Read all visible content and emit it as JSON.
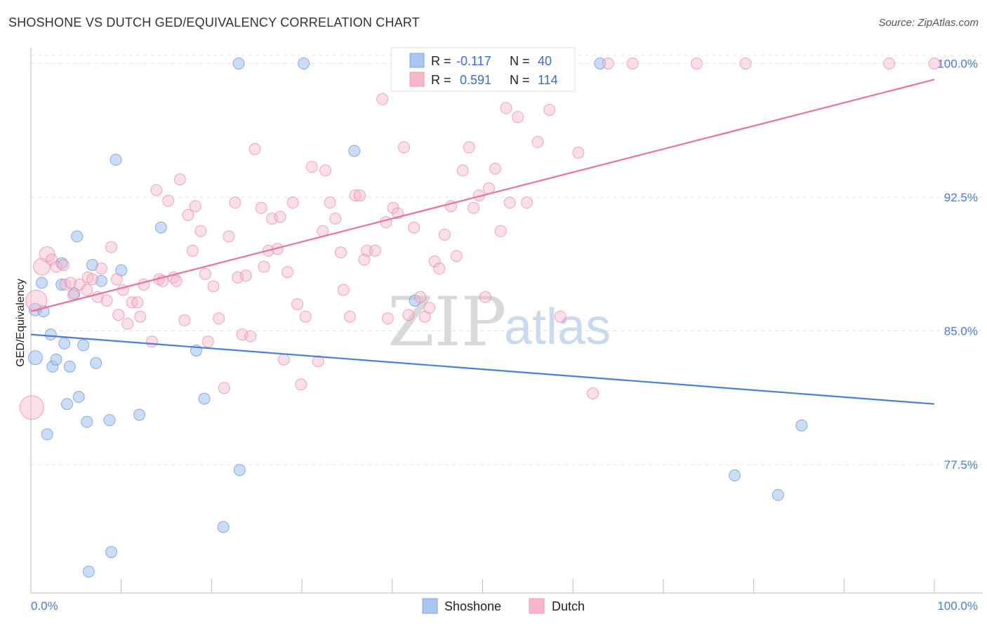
{
  "header": {
    "title": "SHOSHONE VS DUTCH GED/EQUIVALENCY CORRELATION CHART",
    "source": "Source: ZipAtlas.com"
  },
  "legend_box": {
    "rows": [
      {
        "r_label": "R =",
        "r_value": "-0.117",
        "n_label": "N =",
        "n_value": "40",
        "color": "#a9c6f0"
      },
      {
        "r_label": "R =",
        "r_value": "0.591",
        "n_label": "N =",
        "n_value": "114",
        "color": "#f6b8c9"
      }
    ]
  },
  "bottom_legend": {
    "items": [
      {
        "label": "Shoshone",
        "color": "#a9c6f0"
      },
      {
        "label": "Dutch",
        "color": "#f6b8c9"
      }
    ]
  },
  "watermark": {
    "zip": "ZIP",
    "atlas": "atlas"
  },
  "chart_data": {
    "type": "scatter",
    "title": "SHOSHONE VS DUTCH GED/EQUIVALENCY CORRELATION CHART",
    "xlabel": "",
    "ylabel": "GED/Equivalency",
    "xlim": [
      0,
      100
    ],
    "ylim": [
      70.3,
      101.2
    ],
    "x_tick_labels": [
      "0.0%",
      "100.0%"
    ],
    "y_ticks": [
      77.5,
      85.0,
      92.5,
      100.0
    ],
    "y_tick_labels": [
      "77.5%",
      "85.0%",
      "92.5%",
      "100.0%"
    ],
    "grid": true,
    "legend_position": "top-center",
    "series": [
      {
        "name": "Shoshone",
        "color": "#4a7fd6",
        "fill": "#a9c6f0",
        "r": -0.117,
        "n": 40,
        "trend": {
          "x": [
            0,
            100
          ],
          "y": [
            84.8,
            80.9
          ]
        },
        "points": [
          [
            0.5,
            83.5
          ],
          [
            0.5,
            86.2
          ],
          [
            1.2,
            87.7
          ],
          [
            1.4,
            86.1
          ],
          [
            1.8,
            79.2
          ],
          [
            2.2,
            84.8
          ],
          [
            2.4,
            83.0
          ],
          [
            2.8,
            83.4
          ],
          [
            3.4,
            88.8
          ],
          [
            3.4,
            87.6
          ],
          [
            3.7,
            84.3
          ],
          [
            4.0,
            80.9
          ],
          [
            4.3,
            83.0
          ],
          [
            4.8,
            87.1
          ],
          [
            5.1,
            90.3
          ],
          [
            5.3,
            81.3
          ],
          [
            5.8,
            84.2
          ],
          [
            6.2,
            79.9
          ],
          [
            6.4,
            71.5
          ],
          [
            6.8,
            88.7
          ],
          [
            7.2,
            83.2
          ],
          [
            7.8,
            87.8
          ],
          [
            8.7,
            80.0
          ],
          [
            8.9,
            72.6
          ],
          [
            9.4,
            94.6
          ],
          [
            10.0,
            88.4
          ],
          [
            12.0,
            80.3
          ],
          [
            14.4,
            90.8
          ],
          [
            18.3,
            83.9
          ],
          [
            19.2,
            81.2
          ],
          [
            21.3,
            74.0
          ],
          [
            23.0,
            100.0
          ],
          [
            23.1,
            77.2
          ],
          [
            30.2,
            100.0
          ],
          [
            35.8,
            95.1
          ],
          [
            42.5,
            86.7
          ],
          [
            63.0,
            100.0
          ],
          [
            77.9,
            76.9
          ],
          [
            82.7,
            75.8
          ],
          [
            85.3,
            79.7
          ]
        ]
      },
      {
        "name": "Dutch",
        "color": "#e8729b",
        "fill": "#f6b8c9",
        "r": 0.591,
        "n": 114,
        "trend": {
          "x": [
            0,
            100
          ],
          "y": [
            86.1,
            99.1
          ]
        },
        "points": [
          [
            0.1,
            80.7
          ],
          [
            0.6,
            86.7
          ],
          [
            1.2,
            88.6
          ],
          [
            1.8,
            89.3
          ],
          [
            2.3,
            89.0
          ],
          [
            2.8,
            88.6
          ],
          [
            3.6,
            88.7
          ],
          [
            3.8,
            87.6
          ],
          [
            4.4,
            87.7
          ],
          [
            4.7,
            87.0
          ],
          [
            5.4,
            87.6
          ],
          [
            6.2,
            87.3
          ],
          [
            6.3,
            88.0
          ],
          [
            6.8,
            87.9
          ],
          [
            7.4,
            86.9
          ],
          [
            7.8,
            88.5
          ],
          [
            8.4,
            86.7
          ],
          [
            8.9,
            89.7
          ],
          [
            9.5,
            87.9
          ],
          [
            9.7,
            85.9
          ],
          [
            10.2,
            87.3
          ],
          [
            10.7,
            85.4
          ],
          [
            11.2,
            86.6
          ],
          [
            11.8,
            86.6
          ],
          [
            12.1,
            85.8
          ],
          [
            12.5,
            87.6
          ],
          [
            13.4,
            84.4
          ],
          [
            13.9,
            92.9
          ],
          [
            14.2,
            87.9
          ],
          [
            14.6,
            87.8
          ],
          [
            15.2,
            92.3
          ],
          [
            15.8,
            88.0
          ],
          [
            16.1,
            87.8
          ],
          [
            16.5,
            93.5
          ],
          [
            17.0,
            85.6
          ],
          [
            17.4,
            91.5
          ],
          [
            17.9,
            89.5
          ],
          [
            18.2,
            92.0
          ],
          [
            18.8,
            90.6
          ],
          [
            19.3,
            88.2
          ],
          [
            19.6,
            84.4
          ],
          [
            20.2,
            87.5
          ],
          [
            20.8,
            85.7
          ],
          [
            21.4,
            81.8
          ],
          [
            21.9,
            90.3
          ],
          [
            22.6,
            92.2
          ],
          [
            22.9,
            88.0
          ],
          [
            23.4,
            84.8
          ],
          [
            23.8,
            88.1
          ],
          [
            24.3,
            84.7
          ],
          [
            24.8,
            95.2
          ],
          [
            25.5,
            91.9
          ],
          [
            25.8,
            88.6
          ],
          [
            26.3,
            89.5
          ],
          [
            26.7,
            91.3
          ],
          [
            27.3,
            89.6
          ],
          [
            27.6,
            91.4
          ],
          [
            28.0,
            83.4
          ],
          [
            28.4,
            88.3
          ],
          [
            29.0,
            92.2
          ],
          [
            29.5,
            86.5
          ],
          [
            29.9,
            82.0
          ],
          [
            30.4,
            85.8
          ],
          [
            31.1,
            94.2
          ],
          [
            31.8,
            83.3
          ],
          [
            32.3,
            90.6
          ],
          [
            32.6,
            94.0
          ],
          [
            33.1,
            92.2
          ],
          [
            33.7,
            91.3
          ],
          [
            34.3,
            89.4
          ],
          [
            34.6,
            87.3
          ],
          [
            35.3,
            85.8
          ],
          [
            35.9,
            92.6
          ],
          [
            36.4,
            92.6
          ],
          [
            36.9,
            89.0
          ],
          [
            37.2,
            89.5
          ],
          [
            38.1,
            89.5
          ],
          [
            38.9,
            98.0
          ],
          [
            39.3,
            91.1
          ],
          [
            39.5,
            85.7
          ],
          [
            40.1,
            91.9
          ],
          [
            40.6,
            91.6
          ],
          [
            41.3,
            95.3
          ],
          [
            41.8,
            85.9
          ],
          [
            42.4,
            90.8
          ],
          [
            43.1,
            86.9
          ],
          [
            43.6,
            85.8
          ],
          [
            44.1,
            86.3
          ],
          [
            44.7,
            88.9
          ],
          [
            45.2,
            88.5
          ],
          [
            45.8,
            90.4
          ],
          [
            46.5,
            92.0
          ],
          [
            47.1,
            89.2
          ],
          [
            47.8,
            94.0
          ],
          [
            48.5,
            95.3
          ],
          [
            49.0,
            91.9
          ],
          [
            49.6,
            92.6
          ],
          [
            50.3,
            86.9
          ],
          [
            50.7,
            93.0
          ],
          [
            51.4,
            94.1
          ],
          [
            52.0,
            90.6
          ],
          [
            52.6,
            97.5
          ],
          [
            53.0,
            92.2
          ],
          [
            53.9,
            97.0
          ],
          [
            54.9,
            92.2
          ],
          [
            56.1,
            95.6
          ],
          [
            57.4,
            97.4
          ],
          [
            58.6,
            85.8
          ],
          [
            60.6,
            95.0
          ],
          [
            62.2,
            81.5
          ],
          [
            63.9,
            100.0
          ],
          [
            66.6,
            100.0
          ],
          [
            73.7,
            100.0
          ],
          [
            79.1,
            100.0
          ],
          [
            95.0,
            100.0
          ],
          [
            100.0,
            100.0
          ]
        ]
      }
    ]
  }
}
